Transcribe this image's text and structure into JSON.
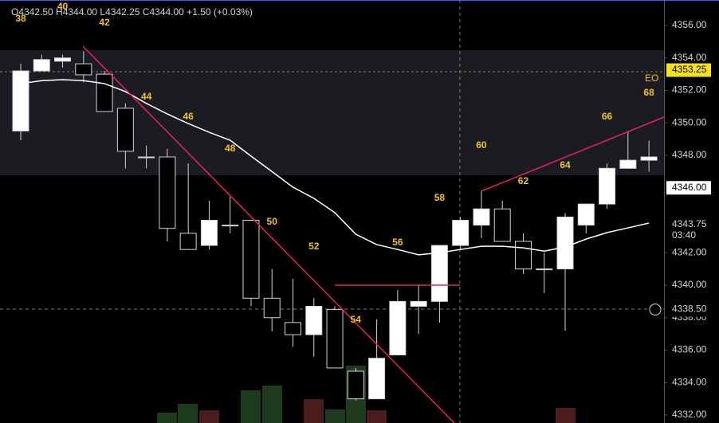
{
  "chart_data": {
    "type": "candlestick",
    "header": "O4342.50 H4344.00 L4342.25 C4344.00 +1.50 (+0.03%)",
    "categories": [
      "38",
      null,
      "40",
      null,
      "42",
      null,
      "44",
      null,
      "46",
      null,
      "48",
      null,
      "50",
      null,
      "52",
      null,
      "54",
      null,
      "56",
      null,
      "58",
      null,
      "60",
      null,
      "62",
      null,
      "64",
      null,
      "66",
      null,
      "68"
    ],
    "open": [
      4349.5,
      4353.2,
      4353.8,
      4353.64,
      4353.0,
      4350.9,
      4347.9,
      4347.9,
      4343.2,
      4342.45,
      4343.7,
      4344.0,
      4339.2,
      4337.7,
      4336.95,
      4338.5,
      4334.7,
      4333.0,
      4335.7,
      4338.7,
      4339.0,
      4342.45,
      4343.7,
      4344.7,
      4342.7,
      4341.0,
      4341.0,
      4343.7,
      4345.0,
      4347.2,
      4347.7
    ],
    "high": [
      4353.64,
      4354.2,
      4354.2,
      4354.4,
      4353.2,
      4351.2,
      4348.6,
      4348.4,
      4347.5,
      4345.2,
      4345.45,
      4344.0,
      4341.0,
      4340.4,
      4339.2,
      4338.7,
      4334.9,
      4337.9,
      4339.7,
      4340.0,
      4342.45,
      4344.2,
      4345.8,
      4345.2,
      4343.2,
      4342.0,
      4344.45,
      4345.0,
      4347.5,
      4349.5,
      4348.9
    ],
    "low": [
      4348.93,
      4353.2,
      4353.4,
      4352.5,
      4350.7,
      4347.2,
      4347.2,
      4342.7,
      4342.2,
      4342.2,
      4343.2,
      4338.7,
      4337.15,
      4336.2,
      4335.6,
      4334.9,
      4332.9,
      4333.0,
      4335.7,
      4337.0,
      4337.7,
      4342.2,
      4342.9,
      4342.7,
      4340.7,
      4339.5,
      4337.2,
      4343.2,
      4344.7,
      4347.2,
      4347.0
    ],
    "close": [
      4353.2,
      4353.9,
      4354.0,
      4352.96,
      4350.7,
      4348.25,
      4347.9,
      4343.5,
      4342.2,
      4344.0,
      4343.7,
      4339.2,
      4338.0,
      4336.95,
      4338.7,
      4334.9,
      4333.0,
      4335.5,
      4339.0,
      4339.0,
      4342.45,
      4344.0,
      4344.7,
      4342.7,
      4341.0,
      4341.0,
      4344.2,
      4345.0,
      4347.2,
      4347.7,
      4347.9
    ],
    "up_color": "#ffffff",
    "down_color": "#000000",
    "ma": {
      "color": "#ffffff",
      "values": [
        4352.42,
        4352.6,
        4352.66,
        4352.6,
        4352.42,
        4351.93,
        4351.2,
        4350.55,
        4349.96,
        4349.42,
        4348.93,
        4347.95,
        4347.0,
        4346.04,
        4345.35,
        4344.47,
        4343.14,
        4342.5,
        4342.2,
        4341.87,
        4342.0,
        4342.2,
        4342.4,
        4342.4,
        4342.3,
        4342.1,
        4342.35,
        4342.84,
        4343.24,
        4343.53,
        4343.83
      ]
    },
    "label_color": "#f0c419",
    "ylim": [
      4331.51,
      4357.57
    ],
    "yticks": [
      {
        "value": 4332,
        "label": "4332.00"
      },
      {
        "value": 4334,
        "label": "4334.00"
      },
      {
        "value": 4336,
        "label": "4336.00"
      },
      {
        "value": 4338,
        "label": "4338.00"
      },
      {
        "value": 4340,
        "label": "4340.00"
      },
      {
        "value": 4342,
        "label": "4342.00"
      },
      {
        "value": 4348,
        "label": "4348.00"
      },
      {
        "value": 4350,
        "label": "4350.00"
      },
      {
        "value": 4352,
        "label": "4352.00"
      },
      {
        "value": 4354,
        "label": "4354.00"
      },
      {
        "value": 4356,
        "label": "4356.00"
      }
    ],
    "price_labels": [
      {
        "value": 4353.25,
        "label": "4353.25",
        "color": "#f7e11b"
      },
      {
        "value": 4346,
        "label": "4346.00",
        "color": "#ffffff"
      },
      {
        "value": 4343.75,
        "label": "4343.75",
        "sub": "03:40",
        "color": "#000000"
      },
      {
        "value": 4338.5,
        "label": "4338.50",
        "color": "#000000"
      }
    ],
    "note": "EO"
  }
}
